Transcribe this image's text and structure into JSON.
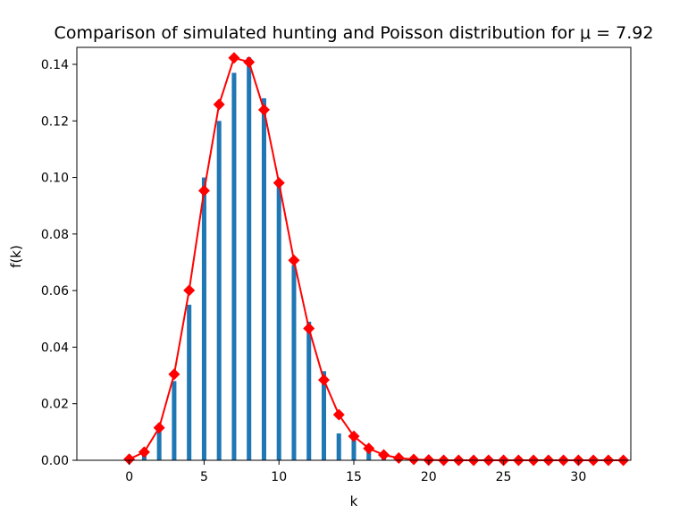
{
  "chart_data": {
    "type": "bar",
    "title": "Comparison of simulated hunting and Poisson distribution for μ = 7.92",
    "xlabel": "k",
    "ylabel": "f(k)",
    "xlim": [
      -3.5,
      33.5
    ],
    "ylim": [
      0,
      0.146
    ],
    "xticks": [
      0,
      5,
      10,
      15,
      20,
      25,
      30
    ],
    "yticks": [
      0.0,
      0.02,
      0.04,
      0.06,
      0.08,
      0.1,
      0.12,
      0.14
    ],
    "ytick_labels": [
      "0.00",
      "0.02",
      "0.04",
      "0.06",
      "0.08",
      "0.10",
      "0.12",
      "0.14"
    ],
    "grid": false,
    "colors": {
      "bars": "#1f77b4",
      "line": "#ff0000"
    },
    "series": [
      {
        "kind": "bar",
        "x": [
          0,
          1,
          2,
          3,
          4,
          5,
          6,
          7,
          8,
          9,
          10,
          11,
          12,
          13,
          14,
          15,
          16,
          17,
          18,
          19,
          20
        ],
        "values": [
          0.0003,
          0.003,
          0.012,
          0.028,
          0.055,
          0.1,
          0.12,
          0.137,
          0.1425,
          0.128,
          0.097,
          0.069,
          0.049,
          0.0315,
          0.0095,
          0.008,
          0.004,
          0.0015,
          0.0005,
          0.0003,
          0.0001
        ]
      },
      {
        "kind": "line",
        "marker": "diamond",
        "x": [
          0,
          1,
          2,
          3,
          4,
          5,
          6,
          7,
          8,
          9,
          10,
          11,
          12,
          13,
          14,
          15,
          16,
          17,
          18,
          19,
          20,
          21,
          22,
          23,
          24,
          25,
          26,
          27,
          28,
          29,
          30,
          31,
          32,
          33
        ],
        "values": [
          0.0004,
          0.0029,
          0.0115,
          0.0304,
          0.0601,
          0.0953,
          0.1258,
          0.1423,
          0.1408,
          0.1239,
          0.0981,
          0.0707,
          0.0466,
          0.0284,
          0.0161,
          0.0085,
          0.0042,
          0.0019,
          0.0008,
          0.0003,
          0.0001,
          0,
          0,
          0,
          0,
          0,
          0,
          0,
          0,
          0,
          0,
          0,
          0,
          0
        ]
      }
    ]
  }
}
